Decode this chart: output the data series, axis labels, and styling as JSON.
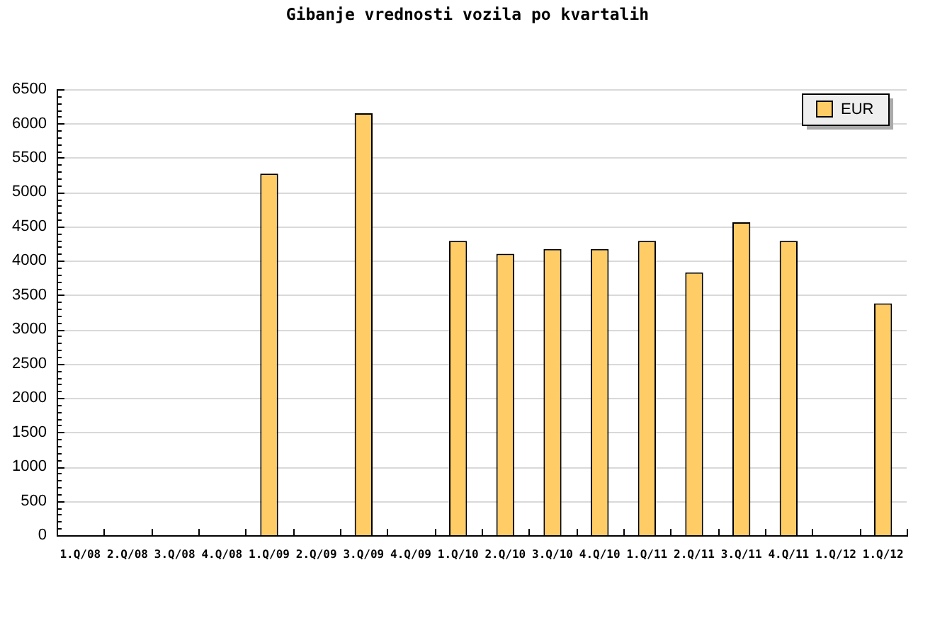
{
  "chart_data": {
    "type": "bar",
    "title": "Gibanje vrednosti vozila po kvartalih",
    "categories": [
      "1.Q/08",
      "2.Q/08",
      "3.Q/08",
      "4.Q/08",
      "1.Q/09",
      "2.Q/09",
      "3.Q/09",
      "4.Q/09",
      "1.Q/10",
      "2.Q/10",
      "3.Q/10",
      "4.Q/10",
      "1.Q/11",
      "2.Q/11",
      "3.Q/11",
      "4.Q/11",
      "1.Q/12",
      "1.Q/12"
    ],
    "series": [
      {
        "name": "EUR",
        "color": "#ffcc66",
        "values": [
          null,
          null,
          null,
          null,
          5270,
          null,
          6150,
          null,
          4290,
          4100,
          4170,
          4170,
          4290,
          3830,
          4560,
          4290,
          null,
          3380
        ]
      }
    ],
    "ylim": [
      0,
      6500
    ],
    "yticks": [
      0,
      {
        "value": 100,
        "label": null
      },
      {
        "value": 200,
        "label": null
      },
      {
        "value": 300,
        "label": null
      },
      {
        "value": 400,
        "label": null
      },
      500,
      {
        "value": 600,
        "label": null
      },
      {
        "value": 700,
        "label": null
      },
      {
        "value": 800,
        "label": null
      },
      {
        "value": 900,
        "label": null
      },
      1000,
      {
        "value": 1100,
        "label": null
      },
      {
        "value": 1200,
        "label": null
      },
      {
        "value": 1300,
        "label": null
      },
      {
        "value": 1400,
        "label": null
      },
      1500,
      {
        "value": 1600,
        "label": null
      },
      {
        "value": 1700,
        "label": null
      },
      {
        "value": 1800,
        "label": null
      },
      {
        "value": 1900,
        "label": null
      },
      2000,
      {
        "value": 2100,
        "label": null
      },
      {
        "value": 2200,
        "label": null
      },
      {
        "value": 2300,
        "label": null
      },
      {
        "value": 2400,
        "label": null
      },
      2500,
      {
        "value": 2600,
        "label": null
      },
      {
        "value": 2700,
        "label": null
      },
      {
        "value": 2800,
        "label": null
      },
      {
        "value": 2900,
        "label": null
      },
      3000,
      {
        "value": 3100,
        "label": null
      },
      {
        "value": 3200,
        "label": null
      },
      {
        "value": 3300,
        "label": null
      },
      {
        "value": 3400,
        "label": null
      },
      3500,
      {
        "value": 3600,
        "label": null
      },
      {
        "value": 3700,
        "label": null
      },
      {
        "value": 3800,
        "label": null
      },
      {
        "value": 3900,
        "label": null
      },
      4000,
      {
        "value": 4100,
        "label": null
      },
      {
        "value": 4200,
        "label": null
      },
      {
        "value": 4300,
        "label": null
      },
      {
        "value": 4400,
        "label": null
      },
      4500,
      {
        "value": 4600,
        "label": null
      },
      {
        "value": 4700,
        "label": null
      },
      {
        "value": 4800,
        "label": null
      },
      {
        "value": 4900,
        "label": null
      },
      5000,
      {
        "value": 5100,
        "label": null
      },
      {
        "value": 5200,
        "label": null
      },
      {
        "value": 5300,
        "label": null
      },
      {
        "value": 5400,
        "label": null
      },
      5500,
      {
        "value": 5600,
        "label": null
      },
      {
        "value": 5700,
        "label": null
      },
      {
        "value": 5800,
        "label": null
      },
      {
        "value": 5900,
        "label": null
      },
      6000,
      {
        "value": 6100,
        "label": null
      },
      {
        "value": 6200,
        "label": null
      },
      {
        "value": 6300,
        "label": null
      },
      {
        "value": 6400,
        "label": null
      },
      6500
    ],
    "grid": "y",
    "legend": "top right"
  }
}
